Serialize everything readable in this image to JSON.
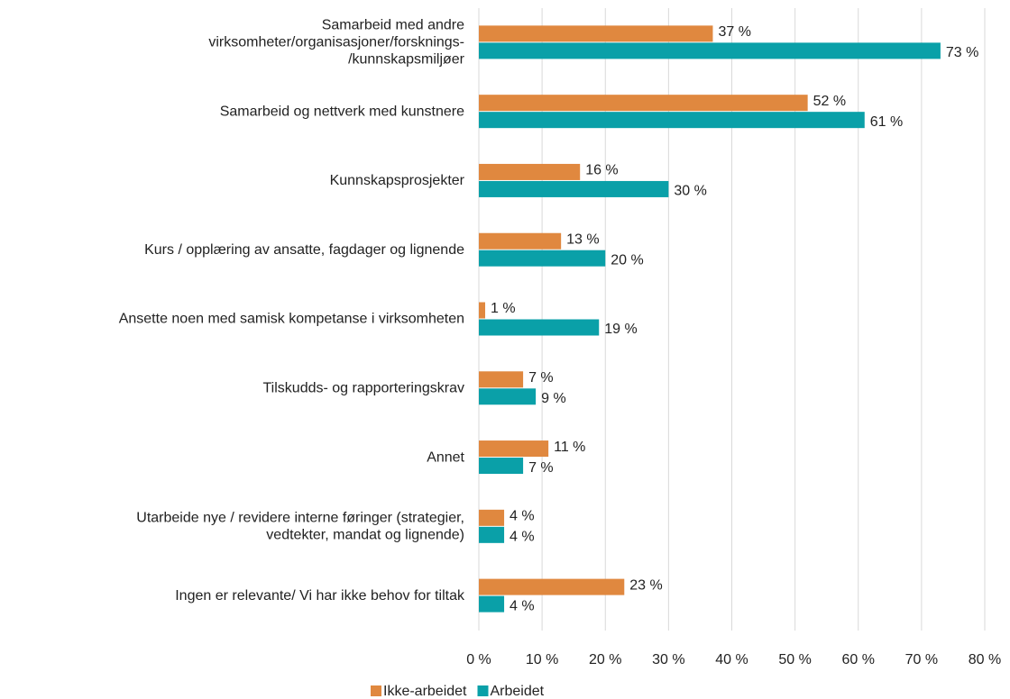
{
  "chart_data": {
    "type": "bar",
    "orientation": "horizontal",
    "categories": [
      [
        "Samarbeid med andre",
        "virksomheter/organisasjoner/forsknings-",
        "/kunnskapsmiljøer"
      ],
      [
        "Samarbeid og nettverk med kunstnere"
      ],
      [
        "Kunnskapsprosjekter"
      ],
      [
        "Kurs / opplæring av ansatte, fagdager og lignende"
      ],
      [
        "Ansette noen med samisk kompetanse i virksomheten"
      ],
      [
        "Tilskudds- og rapporteringskrav"
      ],
      [
        "Annet"
      ],
      [
        "Utarbeide nye / revidere interne føringer (strategier,",
        "vedtekter, mandat og lignende)"
      ],
      [
        "Ingen er relevante/ Vi har ikke behov for tiltak"
      ]
    ],
    "series": [
      {
        "name": "Ikke-arbeidet",
        "color": "#e0883f",
        "values": [
          37,
          52,
          16,
          13,
          1,
          7,
          11,
          4,
          23
        ],
        "value_labels": [
          "37 %",
          "52 %",
          "16 %",
          "13 %",
          "1 %",
          "7 %",
          "11 %",
          "4 %",
          "23 %"
        ]
      },
      {
        "name": "Arbeidet",
        "color": "#0aa0a8",
        "values": [
          73,
          61,
          30,
          20,
          19,
          9,
          7,
          4,
          4
        ],
        "value_labels": [
          "73 %",
          "61 %",
          "30 %",
          "20 %",
          "19 %",
          "9 %",
          "7 %",
          "4 %",
          "4 %"
        ]
      }
    ],
    "xlim": [
      0,
      80
    ],
    "xticks": [
      {
        "value": 0,
        "label": "0 %"
      },
      {
        "value": 10,
        "label": "10 %"
      },
      {
        "value": 20,
        "label": "20 %"
      },
      {
        "value": 30,
        "label": "30 %"
      },
      {
        "value": 40,
        "label": "40 %"
      },
      {
        "value": 50,
        "label": "50 %"
      },
      {
        "value": 60,
        "label": "60 %"
      },
      {
        "value": 70,
        "label": "70 %"
      },
      {
        "value": 80,
        "label": "80 %"
      }
    ],
    "grid": true,
    "legend": "bottom"
  }
}
